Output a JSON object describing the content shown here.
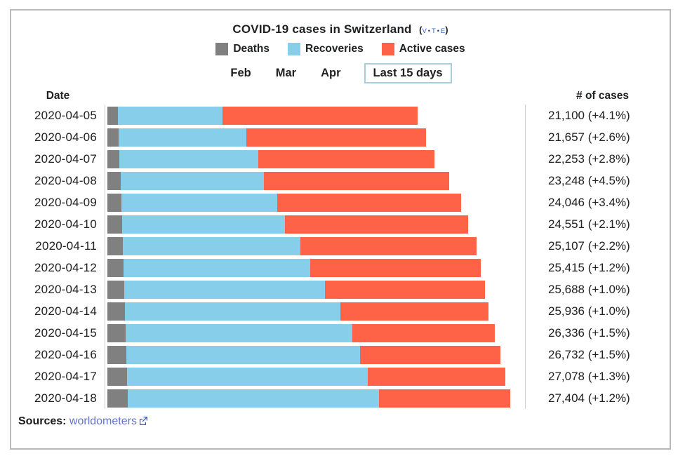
{
  "header": {
    "title": "COVID-19 cases in Switzerland",
    "vte": {
      "open": "(",
      "v": "v",
      "sep1": "•",
      "t": "t",
      "sep2": "•",
      "e": "e",
      "close": ")"
    }
  },
  "legend": {
    "items": [
      {
        "label": "Deaths",
        "color": "#808080"
      },
      {
        "label": "Recoveries",
        "color": "#87CEEB"
      },
      {
        "label": "Active cases",
        "color": "#FF6347"
      }
    ]
  },
  "tabs": {
    "items": [
      {
        "label": "Feb",
        "boxed": false
      },
      {
        "label": "Mar",
        "boxed": false
      },
      {
        "label": "Apr",
        "boxed": false
      },
      {
        "label": "Last 15 days",
        "boxed": true
      }
    ]
  },
  "columns": {
    "date": "Date",
    "cases": "# of cases"
  },
  "chart_data": {
    "type": "bar",
    "orientation": "horizontal",
    "stacked": true,
    "title": "COVID-19 cases in Switzerland",
    "xlabel": "# of cases",
    "ylabel": "Date",
    "xlim": [
      0,
      27404
    ],
    "xmax": 27404,
    "grid": false,
    "legend_position": "top",
    "categories": [
      "2020-04-05",
      "2020-04-06",
      "2020-04-07",
      "2020-04-08",
      "2020-04-09",
      "2020-04-10",
      "2020-04-11",
      "2020-04-12",
      "2020-04-13",
      "2020-04-14",
      "2020-04-15",
      "2020-04-16",
      "2020-04-17",
      "2020-04-18"
    ],
    "series": [
      {
        "name": "Deaths",
        "color": "#808080",
        "values": [
          715,
          765,
          821,
          895,
          948,
          1002,
          1036,
          1106,
          1138,
          1174,
          1239,
          1281,
          1327,
          1368
        ]
      },
      {
        "name": "Recoveries",
        "color": "#87CEEB",
        "values": [
          7100,
          8700,
          9450,
          9750,
          10600,
          11100,
          12100,
          12700,
          13650,
          14700,
          15400,
          15900,
          16400,
          17100
        ]
      },
      {
        "name": "Active cases",
        "color": "#FF6347",
        "values": [
          13285,
          12192,
          11982,
          12603,
          12498,
          12449,
          11971,
          11609,
          10900,
          10062,
          9697,
          9551,
          9351,
          8936
        ]
      }
    ],
    "totals": [
      21100,
      21657,
      22253,
      23248,
      24046,
      24551,
      25107,
      25415,
      25688,
      25936,
      26336,
      26732,
      27078,
      27404
    ],
    "total_labels": [
      "21,100 (+4.1%)",
      "21,657 (+2.6%)",
      "22,253 (+2.8%)",
      "23,248 (+4.5%)",
      "24,046 (+3.4%)",
      "24,551 (+2.1%)",
      "25,107 (+2.2%)",
      "25,415 (+1.2%)",
      "25,688 (+1.0%)",
      "25,936 (+1.0%)",
      "26,336 (+1.5%)",
      "26,732 (+1.5%)",
      "27,078 (+1.3%)",
      "27,404 (+1.2%)"
    ]
  },
  "sources": {
    "label": "Sources:",
    "link_text": "worldometers"
  }
}
